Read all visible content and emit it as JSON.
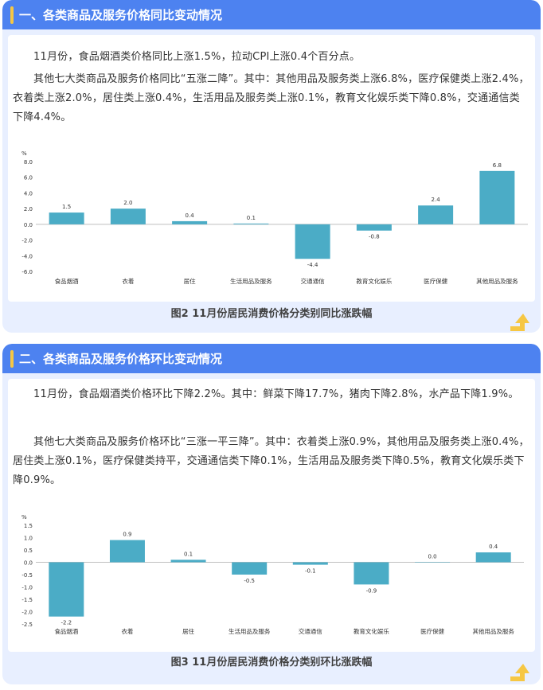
{
  "section1": {
    "title": "一、各类商品及服务价格同比变动情况",
    "paragraph1": "11月份，食品烟酒类价格同比上涨1.5%，拉动CPI上涨0.4个百分点。",
    "paragraph2": "其他七大类商品及服务价格同比“五涨二降”。其中：其他用品及服务类上涨6.8%，医疗保健类上涨2.4%，衣着类上涨2.0%，居住类上涨0.4%，生活用品及服务类上涨0.1%，教育文化娱乐类下降0.8%，交通通信类下降4.4%。",
    "caption": "图2 11月份居民消费价格分类别同比涨跌幅"
  },
  "section2": {
    "title": "二、各类商品及服务价格环比变动情况",
    "paragraph1": "11月份，食品烟酒类价格环比下降2.2%。其中：鲜菜下降17.7%，猪肉下降2.8%，水产品下降1.9%。",
    "paragraph2": "其他七大类商品及服务价格环比“三涨一平三降”。其中：衣着类上涨0.9%，其他用品及服务类上涨0.4%，居住类上涨0.1%，医疗保健类持平，交通通信类下降0.1%，生活用品及服务类下降0.5%，教育文化娱乐类下降0.9%。",
    "caption": "图3 11月份居民消费价格分类别环比涨跌幅"
  },
  "colors": {
    "header": "#4d82f0",
    "accent": "#f6c744",
    "bar": "#4bacc6",
    "section_bg": "#e8efff"
  },
  "chart_data": [
    {
      "type": "bar",
      "ylabel": "%",
      "categories": [
        "食品烟酒",
        "衣着",
        "居住",
        "生活用品及服务",
        "交通通信",
        "教育文化娱乐",
        "医疗保健",
        "其他用品及服务"
      ],
      "values": [
        1.5,
        2.0,
        0.4,
        0.1,
        -4.4,
        -0.8,
        2.4,
        6.8
      ],
      "value_labels": [
        "1.5",
        "2.0",
        "0.4",
        "0.1",
        "-4.4",
        "-0.8",
        "2.4",
        "6.8"
      ],
      "yticks": [
        "8.0",
        "6.0",
        "4.0",
        "2.0",
        "0.0",
        "-2.0",
        "-4.0",
        "-6.0"
      ],
      "ylim": [
        -6,
        8
      ],
      "grid": false,
      "legend": "none"
    },
    {
      "type": "bar",
      "ylabel": "%",
      "categories": [
        "食品烟酒",
        "衣着",
        "居住",
        "生活用品及服务",
        "交通通信",
        "教育文化娱乐",
        "医疗保健",
        "其他用品及服务"
      ],
      "values": [
        -2.2,
        0.9,
        0.1,
        -0.5,
        -0.1,
        -0.9,
        0.0,
        0.4
      ],
      "value_labels": [
        "-2.2",
        "0.9",
        "0.1",
        "-0.5",
        "-0.1",
        "-0.9",
        "0.0",
        "0.4"
      ],
      "yticks": [
        "1.5",
        "1.0",
        "0.5",
        "0.0",
        "-0.5",
        "-1.0",
        "-1.5",
        "-2.0",
        "-2.5"
      ],
      "ylim": [
        -2.5,
        1.5
      ],
      "grid": false,
      "legend": "none"
    }
  ]
}
